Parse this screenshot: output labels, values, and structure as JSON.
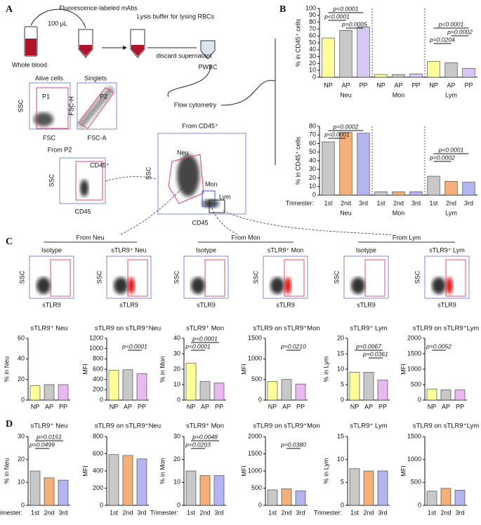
{
  "panel_labels": [
    "A",
    "B",
    "C",
    "D"
  ],
  "workflow": {
    "sample": "Whole blood",
    "volume": "100 μL",
    "mabs": "Fluorescence-labeled mAbs",
    "lysis": "Lysis buffer for lysing RBCs",
    "discard": "discard supernatant",
    "pwbc": "PWBC",
    "cytometry": "Flow cytometry"
  },
  "gates": {
    "alive": "Alive cells",
    "singlets": "Singlets",
    "p1": "P1",
    "p2": "P2",
    "ssc": "SSC",
    "fsc": "FSC",
    "fsch": "FSC-H",
    "fsca": "FSC-A",
    "from_p2": "From P2",
    "cd45pos": "CD45⁺",
    "cd45": "CD45",
    "from_cd45": "From CD45⁺",
    "neu": "Neu",
    "mon": "Mon",
    "lym": "Lym"
  },
  "gating": {
    "x_label": "sTLR9",
    "y_label": "SSC",
    "groups": [
      {
        "from": "From Neu",
        "plots": [
          "Isotype",
          "sTLR9⁺ Neu"
        ]
      },
      {
        "from": "From Mon",
        "plots": [
          "Isotype",
          "sTLR9⁺ Mon"
        ]
      },
      {
        "from": "From Lym",
        "plots": [
          "Isotype",
          "sTLR9⁺ Lym"
        ]
      }
    ]
  },
  "chart_data": [
    {
      "type": "bar",
      "ylabel": "% in CD45⁺ cells",
      "categories": [
        "NP",
        "AP",
        "PP",
        "NP",
        "AP",
        "PP",
        "NP",
        "AP",
        "PP"
      ],
      "groups": [
        "Neu",
        "Mon",
        "Lym"
      ],
      "values": [
        57,
        68,
        73,
        4,
        4,
        5,
        23,
        21,
        13
      ],
      "colors": [
        "#ffff99",
        "#c8c8c8",
        "#d7c7f5",
        "#ffff99",
        "#c8c8c8",
        "#d7c7f5",
        "#ffff99",
        "#c8c8c8",
        "#d7c7f5"
      ],
      "ylim": [
        0,
        100
      ],
      "yticks": [
        0,
        10,
        20,
        30,
        40,
        50,
        60,
        70,
        80,
        90,
        100
      ],
      "annotations": [
        "p<0.0001",
        "p<0.0001",
        "p=0.0005",
        "p<0.0001",
        "p=0.0002",
        "p=0.0204"
      ]
    },
    {
      "type": "bar",
      "ylabel": "% in CD45⁺ cells",
      "x_prefix": "Trimester:",
      "categories": [
        "1st",
        "2nd",
        "3rd",
        "1st",
        "2nd",
        "3rd",
        "1st",
        "2nd",
        "3rd"
      ],
      "groups": [
        "Neu",
        "Mon",
        "Lym"
      ],
      "values": [
        62,
        73,
        72,
        4,
        4,
        4,
        22,
        16,
        15
      ],
      "colors": [
        "#c8c8c8",
        "#f5b07a",
        "#b4b4f0",
        "#c8c8c8",
        "#f5b07a",
        "#b4b4f0",
        "#c8c8c8",
        "#f5b07a",
        "#b4b4f0"
      ],
      "ylim": [
        0,
        80
      ],
      "yticks": [
        0,
        10,
        20,
        30,
        40,
        50,
        60,
        70,
        80
      ],
      "annotations": [
        "p=0.0002",
        "p<0.0001",
        "p<0.0001",
        "p=0.0002"
      ]
    },
    {
      "type": "bar",
      "title": "sTLR9⁺ Neu",
      "ylabel": "% in Neu",
      "categories": [
        "NP",
        "AP",
        "PP"
      ],
      "values": [
        14,
        15,
        15
      ],
      "colors": [
        "#ffff99",
        "#c8c8c8",
        "#eab8f2"
      ],
      "ylim": [
        0,
        60
      ],
      "yticks": [
        0,
        20,
        40,
        60
      ],
      "annotations": []
    },
    {
      "type": "bar",
      "title": "sTLR9 on sTLR9⁺Neu",
      "ylabel": "MFI",
      "categories": [
        "NP",
        "AP",
        "PP"
      ],
      "values": [
        580,
        590,
        510
      ],
      "colors": [
        "#ffff99",
        "#c8c8c8",
        "#eab8f2"
      ],
      "ylim": [
        0,
        1200
      ],
      "yticks": [
        0,
        200,
        400,
        600,
        800,
        1000,
        1200
      ],
      "annotations": [
        "p<0.0001"
      ]
    },
    {
      "type": "bar",
      "title": "sTLR9⁺ Mon",
      "ylabel": "% in Mon",
      "categories": [
        "NP",
        "AP",
        "PP"
      ],
      "values": [
        24,
        12,
        11
      ],
      "colors": [
        "#ffff99",
        "#c8c8c8",
        "#eab8f2"
      ],
      "ylim": [
        0,
        40
      ],
      "yticks": [
        0,
        10,
        20,
        30,
        40
      ],
      "annotations": [
        "p<0.0001",
        "p<0.0001"
      ]
    },
    {
      "type": "bar",
      "title": "sTLR9 on sTLR9⁺Mon",
      "ylabel": "MFI",
      "categories": [
        "NP",
        "AP",
        "PP"
      ],
      "values": [
        450,
        500,
        390
      ],
      "colors": [
        "#ffff99",
        "#c8c8c8",
        "#eab8f2"
      ],
      "ylim": [
        0,
        1500
      ],
      "yticks": [
        0,
        500,
        1000,
        1500
      ],
      "annotations": [
        "p=0.0210"
      ]
    },
    {
      "type": "bar",
      "title": "sTLR9⁺ Lym",
      "ylabel": "% in Lym",
      "categories": [
        "NP",
        "AP",
        "PP"
      ],
      "values": [
        9,
        9,
        6.5
      ],
      "colors": [
        "#ffff99",
        "#c8c8c8",
        "#eab8f2"
      ],
      "ylim": [
        0,
        20
      ],
      "yticks": [
        0,
        5,
        10,
        15,
        20
      ],
      "annotations": [
        "p=0.0067",
        "p=0.0361"
      ]
    },
    {
      "type": "bar",
      "title": "sTLR9 on sTLR9⁺Lym",
      "ylabel": "MFI",
      "categories": [
        "NP",
        "AP",
        "PP"
      ],
      "values": [
        360,
        330,
        330
      ],
      "colors": [
        "#ffff99",
        "#c8c8c8",
        "#eab8f2"
      ],
      "ylim": [
        0,
        2000
      ],
      "yticks": [
        0,
        500,
        1000,
        1500,
        2000
      ],
      "annotations": [
        "p=0.0052"
      ]
    },
    {
      "type": "bar",
      "title": "sTLR9⁺ Neu",
      "ylabel": "% in Neu",
      "x_prefix": "Trimester:",
      "categories": [
        "1st",
        "2nd",
        "3rd"
      ],
      "values": [
        15,
        12,
        11
      ],
      "colors": [
        "#c8c8c8",
        "#f5b07a",
        "#b4b4f0"
      ],
      "ylim": [
        0,
        30
      ],
      "yticks": [
        0,
        10,
        20,
        30
      ],
      "annotations": [
        "p=0.0151",
        "p=0.0499"
      ]
    },
    {
      "type": "bar",
      "title": "sTLR9 on sTLR9⁺Neu",
      "ylabel": "MFI",
      "categories": [
        "1st",
        "2nd",
        "3rd"
      ],
      "values": [
        590,
        580,
        540
      ],
      "colors": [
        "#c8c8c8",
        "#f5b07a",
        "#b4b4f0"
      ],
      "ylim": [
        0,
        800
      ],
      "yticks": [
        0,
        200,
        400,
        600,
        800
      ],
      "annotations": []
    },
    {
      "type": "bar",
      "title": "sTLR9⁺ Mon",
      "ylabel": "% in Mon",
      "x_prefix": "Trimester:",
      "categories": [
        "1st",
        "2nd",
        "3rd"
      ],
      "values": [
        15,
        13,
        13
      ],
      "colors": [
        "#c8c8c8",
        "#f5b07a",
        "#b4b4f0"
      ],
      "ylim": [
        0,
        30
      ],
      "yticks": [
        0,
        10,
        20,
        30
      ],
      "annotations": [
        "p=0.0048",
        "p=0.0203"
      ]
    },
    {
      "type": "bar",
      "title": "sTLR9 on sTLR9⁺Mon",
      "ylabel": "MFI",
      "categories": [
        "1st",
        "2nd",
        "3rd"
      ],
      "values": [
        450,
        480,
        420
      ],
      "colors": [
        "#c8c8c8",
        "#f5b07a",
        "#b4b4f0"
      ],
      "ylim": [
        0,
        2000
      ],
      "yticks": [
        0,
        500,
        1000,
        1500,
        2000
      ],
      "annotations": [
        "p=0.0380"
      ]
    },
    {
      "type": "bar",
      "title": "sTLR9⁺ Lym",
      "ylabel": "% in Lym",
      "x_prefix": "Trimester:",
      "categories": [
        "1st",
        "2nd",
        "3rd"
      ],
      "values": [
        8,
        7.5,
        7.5
      ],
      "colors": [
        "#c8c8c8",
        "#f5b07a",
        "#b4b4f0"
      ],
      "ylim": [
        0,
        15
      ],
      "yticks": [
        0,
        5,
        10,
        15
      ],
      "annotations": []
    },
    {
      "type": "bar",
      "title": "sTLR9 on sTLR9⁺Lym",
      "ylabel": "MFI",
      "categories": [
        "1st",
        "2nd",
        "3rd"
      ],
      "values": [
        310,
        370,
        330
      ],
      "colors": [
        "#c8c8c8",
        "#f5b07a",
        "#b4b4f0"
      ],
      "ylim": [
        0,
        1500
      ],
      "yticks": [
        0,
        500,
        1000,
        1500
      ],
      "annotations": []
    }
  ]
}
